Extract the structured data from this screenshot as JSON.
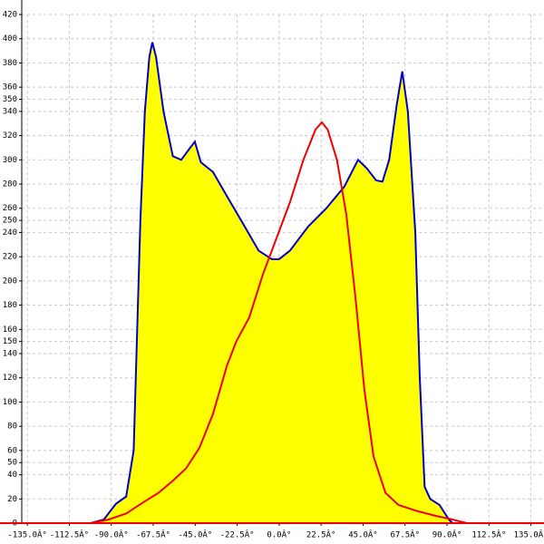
{
  "chart_data": {
    "type": "area",
    "xlim": [
      -138,
      142
    ],
    "ylim": [
      0,
      420
    ],
    "xticks": [
      {
        "value": -135,
        "label": "-135.0Â°"
      },
      {
        "value": -112.5,
        "label": "-112.5Â°"
      },
      {
        "value": -90,
        "label": "-90.0Â°"
      },
      {
        "value": -67.5,
        "label": "-67.5Â°"
      },
      {
        "value": -45,
        "label": "-45.0Â°"
      },
      {
        "value": -22.5,
        "label": "-22.5Â°"
      },
      {
        "value": 0,
        "label": "0.0Â°"
      },
      {
        "value": 22.5,
        "label": "22.5Â°"
      },
      {
        "value": 45,
        "label": "45.0Â°"
      },
      {
        "value": 67.5,
        "label": "67.5Â°"
      },
      {
        "value": 90,
        "label": "90.0Â°"
      },
      {
        "value": 112.5,
        "label": "112.5Â°"
      },
      {
        "value": 135,
        "label": "135.0Â°"
      }
    ],
    "yticks": [
      0,
      20,
      40,
      50,
      60,
      80,
      100,
      120,
      140,
      150,
      160,
      180,
      200,
      220,
      240,
      250,
      260,
      280,
      300,
      320,
      340,
      350,
      360,
      380,
      400,
      420
    ],
    "grid": true,
    "series": [
      {
        "color": "#0000cc",
        "fill": "#ffff00",
        "x": [
          -101,
          -94,
          -87.5,
          -82,
          -78,
          -74.4,
          -72,
          -69.6,
          -68,
          -66,
          -62,
          -57,
          -52.5,
          -47.7,
          -45.2,
          -42,
          -35.5,
          -28,
          -18.5,
          -11,
          -3.9,
          0,
          5.8,
          15.6,
          25.3,
          35,
          42.3,
          47,
          52,
          55.4,
          59,
          63,
          66,
          69,
          73,
          75.4,
          78,
          81,
          86,
          91,
          93
        ],
        "values": [
          0,
          3,
          16,
          22,
          60,
          250,
          340,
          385,
          397,
          385,
          340,
          303,
          300,
          310,
          315,
          298,
          290,
          270,
          245,
          225,
          218,
          218,
          225,
          245,
          260,
          278,
          300,
          293,
          283,
          282,
          300,
          345,
          373,
          340,
          240,
          120,
          30,
          20,
          15,
          3,
          0
        ]
      },
      {
        "color": "#ee0000",
        "x": [
          -101,
          -91.4,
          -82,
          -72,
          -64.7,
          -57,
          -50,
          -42.8,
          -35.5,
          -28,
          -23,
          -16,
          -8.8,
          -1.5,
          5.8,
          13,
          19.5,
          22.9,
          26,
          31,
          36,
          41,
          45.7,
          50.6,
          57,
          64,
          74,
          84,
          93,
          100.7
        ],
        "values": [
          0,
          3,
          8,
          18,
          25,
          35,
          45,
          62,
          90,
          130,
          150,
          170,
          205,
          235,
          265,
          300,
          325,
          331,
          325,
          300,
          255,
          185,
          110,
          55,
          25,
          15,
          10,
          6,
          3,
          0
        ]
      }
    ]
  }
}
